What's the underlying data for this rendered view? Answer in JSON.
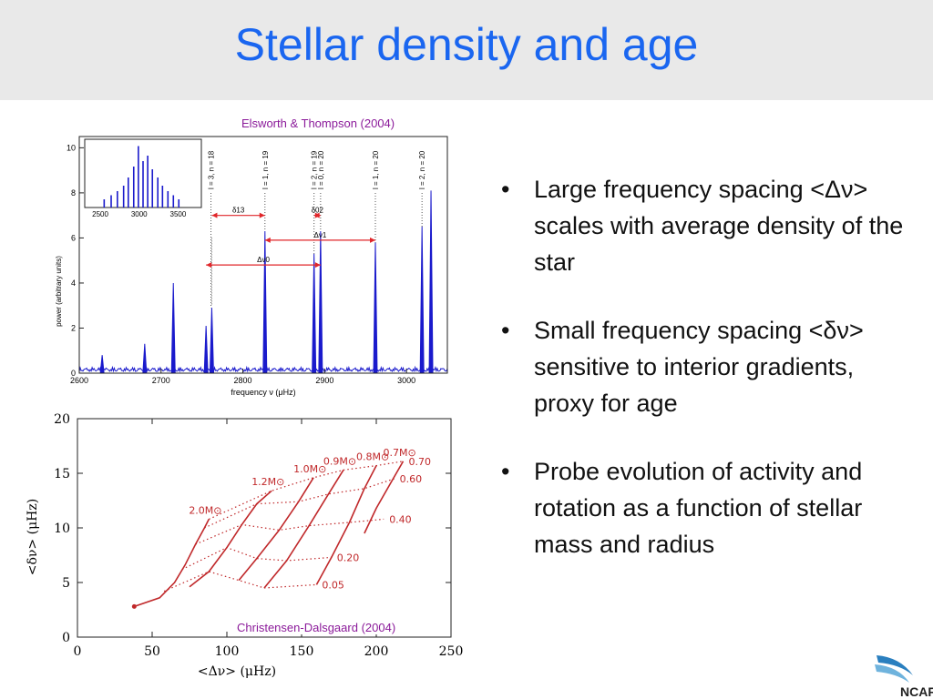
{
  "slide": {
    "title": "Stellar density and age",
    "credit_top": "Elsworth & Thompson (2004)",
    "credit_bottom": "Christensen-Dalsgaard (2004)",
    "logo_text": "NCAR",
    "title_color": "#1a66f0",
    "bullets": [
      {
        "bullet": "•",
        "text": "Large frequency spacing <Δν> scales with average density of the star"
      },
      {
        "bullet": "•",
        "text": "Small frequency spacing <δν> sensitive to interior gradients, proxy for age"
      },
      {
        "bullet": "•",
        "text": "Probe evolution of activity and rotation as a function of stellar mass and radius"
      }
    ]
  },
  "chart_data": [
    {
      "type": "line",
      "xlabel": "frequency ν (μHz)",
      "ylabel": "power (arbitrary units)",
      "xlim": [
        2600,
        3050
      ],
      "ylim": [
        0,
        10.5
      ],
      "x_ticks": [
        2600,
        2700,
        2800,
        2900,
        3000
      ],
      "y_ticks": [
        0,
        2,
        4,
        6,
        8,
        10
      ],
      "series_color": "#1a1acc",
      "peaks": [
        {
          "x": 2628,
          "y": 0.8
        },
        {
          "x": 2680,
          "y": 1.3
        },
        {
          "x": 2715,
          "y": 4.0
        },
        {
          "x": 2755,
          "y": 2.1
        },
        {
          "x": 2762,
          "y": 2.9
        },
        {
          "x": 2827,
          "y": 6.3
        },
        {
          "x": 2887,
          "y": 5.3
        },
        {
          "x": 2895,
          "y": 6.3
        },
        {
          "x": 2962,
          "y": 5.8
        },
        {
          "x": 3019,
          "y": 6.5
        },
        {
          "x": 3030,
          "y": 8.1
        }
      ],
      "mode_labels": [
        "l = 3, n = 18",
        "l = 1, n = 19",
        "l = 2, n = 19",
        "l = 0, n = 20",
        "l = 1, n = 20",
        "l = 2, n = 20"
      ],
      "annotations": [
        "δ13",
        "δ02",
        "Δν1",
        "Δν0"
      ],
      "inset": {
        "x_ticks": [
          2500,
          3000,
          3500
        ],
        "xlim": [
          2300,
          3800
        ],
        "peaks": [
          {
            "x": 2550,
            "y": 0.6
          },
          {
            "x": 2640,
            "y": 0.9
          },
          {
            "x": 2720,
            "y": 1.2
          },
          {
            "x": 2800,
            "y": 1.6
          },
          {
            "x": 2860,
            "y": 2.2
          },
          {
            "x": 2930,
            "y": 3.0
          },
          {
            "x": 2990,
            "y": 4.5
          },
          {
            "x": 3050,
            "y": 3.4
          },
          {
            "x": 3110,
            "y": 3.8
          },
          {
            "x": 3170,
            "y": 2.8
          },
          {
            "x": 3240,
            "y": 2.2
          },
          {
            "x": 3300,
            "y": 1.6
          },
          {
            "x": 3370,
            "y": 1.2
          },
          {
            "x": 3440,
            "y": 0.9
          },
          {
            "x": 3510,
            "y": 0.6
          }
        ]
      }
    },
    {
      "type": "line",
      "xlabel": "<Δν> (μHz)",
      "ylabel": "<δν> (μHz)",
      "xlim": [
        0,
        250
      ],
      "ylim": [
        0,
        20
      ],
      "x_ticks": [
        0,
        50,
        100,
        150,
        200,
        250
      ],
      "y_ticks": [
        0,
        5,
        10,
        15,
        20
      ],
      "series_color": "#c0282a",
      "mass_tracks": [
        {
          "name": "2.0M⊙",
          "points": [
            [
              38,
              2.8
            ],
            [
              55,
              3.6
            ],
            [
              65,
              5.0
            ],
            [
              72,
              6.6
            ],
            [
              79,
              8.5
            ],
            [
              85,
              10.0
            ],
            [
              88,
              10.8
            ]
          ]
        },
        {
          "name": "1.2M⊙",
          "points": [
            [
              75,
              4.6
            ],
            [
              88,
              6.0
            ],
            [
              100,
              8.2
            ],
            [
              110,
              10.3
            ],
            [
              120,
              12.2
            ],
            [
              130,
              13.4
            ]
          ]
        },
        {
          "name": "1.0M⊙",
          "points": [
            [
              108,
              5.2
            ],
            [
              120,
              7.2
            ],
            [
              135,
              9.8
            ],
            [
              148,
              12.4
            ],
            [
              158,
              14.6
            ]
          ]
        },
        {
          "name": "0.9M⊙",
          "points": [
            [
              125,
              4.5
            ],
            [
              140,
              7.0
            ],
            [
              155,
              10.2
            ],
            [
              168,
              13.1
            ],
            [
              178,
              15.3
            ]
          ]
        },
        {
          "name": "0.8M⊙",
          "points": [
            [
              160,
              4.8
            ],
            [
              170,
              7.3
            ],
            [
              182,
              10.5
            ],
            [
              192,
              13.6
            ],
            [
              200,
              15.7
            ]
          ]
        },
        {
          "name": "0.7M⊙",
          "points": [
            [
              192,
              9.5
            ],
            [
              200,
              11.8
            ],
            [
              210,
              14.2
            ],
            [
              218,
              16.1
            ]
          ]
        }
      ],
      "isochrones": [
        {
          "name": "0.70",
          "points": [
            [
              88,
              10.8
            ],
            [
              130,
              13.4
            ],
            [
              158,
              14.6
            ],
            [
              178,
              15.3
            ],
            [
              200,
              15.7
            ],
            [
              218,
              16.1
            ]
          ]
        },
        {
          "name": "0.60",
          "points": [
            [
              85,
              10.0
            ],
            [
              120,
              12.2
            ],
            [
              148,
              12.4
            ],
            [
              168,
              13.1
            ],
            [
              192,
              13.6
            ],
            [
              212,
              14.5
            ]
          ]
        },
        {
          "name": "0.40",
          "points": [
            [
              79,
              8.5
            ],
            [
              110,
              10.3
            ],
            [
              135,
              9.8
            ],
            [
              155,
              10.2
            ],
            [
              182,
              10.5
            ],
            [
              205,
              10.8
            ]
          ]
        },
        {
          "name": "0.20",
          "points": [
            [
              70,
              6.2
            ],
            [
              100,
              8.2
            ],
            [
              120,
              7.2
            ],
            [
              140,
              7.0
            ],
            [
              170,
              7.3
            ]
          ]
        },
        {
          "name": "0.05",
          "points": [
            [
              58,
              4.2
            ],
            [
              88,
              6.0
            ],
            [
              108,
              5.2
            ],
            [
              125,
              4.5
            ],
            [
              160,
              4.8
            ]
          ]
        }
      ]
    }
  ]
}
